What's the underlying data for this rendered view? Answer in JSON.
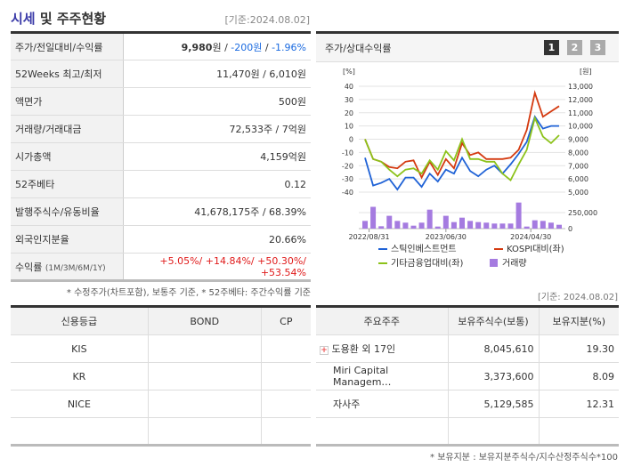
{
  "header": {
    "title_a": "시세",
    "title_b": " 및 주주현황",
    "as_of": "[기준:2024.08.02]"
  },
  "info": {
    "rows": [
      {
        "label": "주가/전일대비/수익률"
      },
      {
        "label": "52Weeks 최고/최저",
        "value": "11,470원 / 6,010원"
      },
      {
        "label": "액면가",
        "value": "500원"
      },
      {
        "label": "거래량/거래대금",
        "value": "72,533주 / 7억원"
      },
      {
        "label": "시가총액",
        "value": "4,159억원"
      },
      {
        "label": "52주베타",
        "value": "0.12"
      },
      {
        "label": "발행주식수/유동비율",
        "value": "41,678,175주 / 68.39%"
      },
      {
        "label": "외국인지분율",
        "value": "20.66%"
      },
      {
        "label": "수익률",
        "sub": "(1M/3M/6M/1Y)"
      }
    ],
    "price": "9,980",
    "won": "원",
    "sep": " / ",
    "change": "-200원",
    "change_sep": " / ",
    "change_pct": "-1.96%",
    "returns": [
      "+5.05%/",
      "+14.84%/",
      "+50.30%/",
      "+53.54%"
    ],
    "footnote": "* 수정주가(차트포함), 보통주 기준, * 52주베타: 주간수익률 기준"
  },
  "chart": {
    "title": "주가/상대수익률",
    "pages": [
      "1",
      "2",
      "3"
    ],
    "active_page": "1"
  },
  "chart_data": {
    "type": "line",
    "left_unit": "[%]",
    "right_unit": "[원]",
    "left_ticks": [
      "40",
      "30",
      "20",
      "10",
      "0",
      "-10",
      "-20",
      "-30",
      "-40"
    ],
    "right_ticks": [
      "13,000",
      "12,000",
      "11,000",
      "10,000",
      "9,000",
      "8,000",
      "7,000",
      "6,000",
      "5,000"
    ],
    "volume_ticks": [
      "250,000",
      "0"
    ],
    "ylim": [
      -40,
      40
    ],
    "y2lim": [
      5000,
      13000
    ],
    "volume_max": 250000,
    "x_labels": [
      "2022/08/31",
      "2023/06/30",
      "2024/04/30"
    ],
    "series": [
      {
        "name": "스틱인베스트먼트",
        "color": "#1f62d6",
        "values": [
          -14,
          -35,
          -33,
          -30,
          -38,
          -29,
          -29,
          -36,
          -26,
          -32,
          -23,
          -26,
          -14,
          -24,
          -28,
          -23,
          -20,
          -26,
          -19,
          -11,
          -2,
          17,
          8,
          10,
          10
        ]
      },
      {
        "name": "KOSPI대비(좌)",
        "color": "#d43a10",
        "values": [
          0,
          -15,
          -17,
          -21,
          -22,
          -17,
          -16,
          -29,
          -17,
          -27,
          -15,
          -22,
          -3,
          -12,
          -10,
          -15,
          -15,
          -15,
          -14,
          -8,
          7,
          35,
          17,
          21,
          25
        ]
      },
      {
        "name": "기타금융업대비(좌)",
        "color": "#8cc21a",
        "values": [
          0,
          -15,
          -17,
          -23,
          -28,
          -23,
          -22,
          -26,
          -16,
          -23,
          -9,
          -16,
          0,
          -15,
          -15,
          -17,
          -17,
          -26,
          -31,
          -19,
          -8,
          16,
          2,
          -3,
          3
        ]
      }
    ],
    "volume": {
      "name": "거래량",
      "color": "#a57be0",
      "values": [
        120000,
        340000,
        37000,
        200000,
        120000,
        93000,
        46000,
        93000,
        296000,
        32000,
        200000,
        102000,
        171000,
        120000,
        102000,
        93000,
        79000,
        79000,
        79000,
        407000,
        32000,
        130000,
        120000,
        93000,
        60000
      ]
    }
  },
  "credit": {
    "headers": [
      "신용등급",
      "BOND",
      "CP"
    ],
    "rows": [
      [
        "KIS",
        "",
        ""
      ],
      [
        "KR",
        "",
        ""
      ],
      [
        "NICE",
        "",
        ""
      ],
      [
        "",
        "",
        ""
      ]
    ]
  },
  "holders": {
    "as_of": "[기준: 2024.08.02]",
    "headers": [
      "주요주주",
      "보유주식수(보통)",
      "보유지분(%)"
    ],
    "rows": [
      [
        "도용환 외 17인",
        "8,045,610",
        "19.30"
      ],
      [
        "Miri Capital Managem…",
        "3,373,600",
        "8.09"
      ],
      [
        "자사주",
        "5,129,585",
        "12.31"
      ],
      [
        "",
        "",
        ""
      ]
    ],
    "footnote": "* 보유지분 : 보유지분주식수/지수산정주식수*100"
  }
}
